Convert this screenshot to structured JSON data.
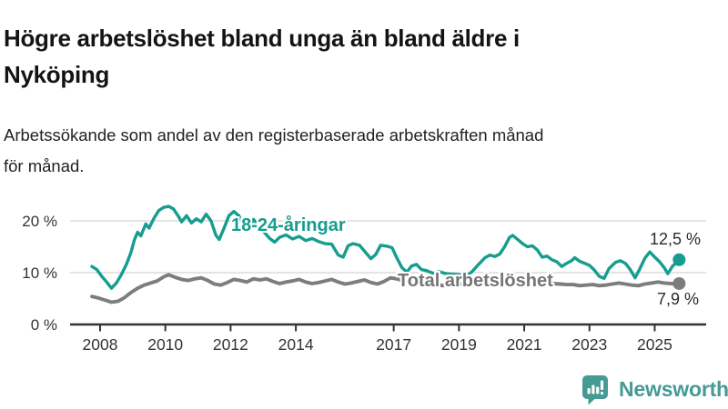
{
  "header": {
    "title": "Högre arbetslöshet bland unga än bland äldre i Nyköping",
    "title_lines": [
      "Högre arbetslöshet bland unga än bland äldre i",
      "Nyköping"
    ],
    "subtitle": "Arbetssökande som andel av den registerbaserade arbetskraften månad för månad.",
    "subtitle_lines": [
      "Arbetssökande som andel av den registerbaserade arbetskraften månad",
      "för månad."
    ]
  },
  "footer": {
    "brand": "Newsworthy",
    "logo_icon": "bar-chart-speech-bubble-icon"
  },
  "colors": {
    "young_series": "#169d8f",
    "total_series": "#7d7d7d",
    "grid": "#dcdcdc",
    "axis": "#333333",
    "axis_text": "#333333",
    "value_text": "#2b2b2b",
    "brand_teal": "#459a94"
  },
  "chart_data": {
    "type": "line",
    "title": "Högre arbetslöshet bland unga än bland äldre i Nyköping",
    "subtitle": "Arbetssökande som andel av den registerbaserade arbetskraften månad för månad.",
    "unit": "%",
    "x_axis": {
      "range": [
        2007.7,
        2025.95
      ],
      "ticks": [
        2008,
        2010,
        2012,
        2014,
        2017,
        2019,
        2021,
        2023,
        2025
      ]
    },
    "y_axis": {
      "range": [
        0,
        23.5
      ],
      "ticks": [
        0,
        10,
        20
      ],
      "tick_labels": [
        "0 %",
        "10 %",
        "20 %"
      ],
      "gridlines": [
        10,
        20
      ]
    },
    "legend_position": "inline-annotations",
    "grid": true,
    "series": [
      {
        "name": "18-24-åringar",
        "color": "#169d8f",
        "end_value": 12.5,
        "end_label": "12,5 %",
        "points": [
          [
            2007.75,
            11.2
          ],
          [
            2007.9,
            10.6
          ],
          [
            2008.05,
            9.3
          ],
          [
            2008.2,
            8.2
          ],
          [
            2008.35,
            7.0
          ],
          [
            2008.5,
            8.0
          ],
          [
            2008.65,
            9.6
          ],
          [
            2008.8,
            11.5
          ],
          [
            2008.95,
            14.0
          ],
          [
            2009.05,
            16.3
          ],
          [
            2009.15,
            17.8
          ],
          [
            2009.25,
            17.1
          ],
          [
            2009.4,
            19.4
          ],
          [
            2009.5,
            18.6
          ],
          [
            2009.65,
            20.5
          ],
          [
            2009.8,
            22.0
          ],
          [
            2009.95,
            22.6
          ],
          [
            2010.1,
            22.8
          ],
          [
            2010.25,
            22.3
          ],
          [
            2010.4,
            20.9
          ],
          [
            2010.5,
            19.8
          ],
          [
            2010.65,
            21.0
          ],
          [
            2010.8,
            19.6
          ],
          [
            2010.95,
            20.4
          ],
          [
            2011.1,
            19.8
          ],
          [
            2011.25,
            21.3
          ],
          [
            2011.4,
            20.0
          ],
          [
            2011.55,
            17.2
          ],
          [
            2011.65,
            16.4
          ],
          [
            2011.8,
            18.6
          ],
          [
            2011.95,
            21.0
          ],
          [
            2012.1,
            21.8
          ],
          [
            2012.25,
            21.0
          ],
          [
            2012.4,
            19.3
          ],
          [
            2012.55,
            18.2
          ],
          [
            2012.7,
            20.3
          ],
          [
            2012.85,
            19.2
          ],
          [
            2013.0,
            18.0
          ],
          [
            2013.2,
            16.6
          ],
          [
            2013.35,
            15.9
          ],
          [
            2013.5,
            16.8
          ],
          [
            2013.7,
            17.3
          ],
          [
            2013.9,
            16.5
          ],
          [
            2014.1,
            17.0
          ],
          [
            2014.3,
            16.2
          ],
          [
            2014.5,
            16.6
          ],
          [
            2014.7,
            16.0
          ],
          [
            2014.9,
            15.6
          ],
          [
            2015.1,
            15.5
          ],
          [
            2015.3,
            13.4
          ],
          [
            2015.45,
            13.0
          ],
          [
            2015.6,
            15.2
          ],
          [
            2015.75,
            15.6
          ],
          [
            2015.95,
            15.3
          ],
          [
            2016.1,
            14.2
          ],
          [
            2016.3,
            12.7
          ],
          [
            2016.45,
            13.5
          ],
          [
            2016.6,
            15.3
          ],
          [
            2016.8,
            15.1
          ],
          [
            2016.95,
            14.8
          ],
          [
            2017.1,
            12.8
          ],
          [
            2017.25,
            11.0
          ],
          [
            2017.4,
            10.1
          ],
          [
            2017.55,
            11.3
          ],
          [
            2017.7,
            11.6
          ],
          [
            2017.85,
            10.6
          ],
          [
            2018.0,
            10.4
          ],
          [
            2018.2,
            9.9
          ],
          [
            2018.4,
            10.2
          ],
          [
            2018.6,
            9.8
          ],
          [
            2018.8,
            9.7
          ],
          [
            2019.0,
            9.6
          ],
          [
            2019.2,
            9.2
          ],
          [
            2019.4,
            10.2
          ],
          [
            2019.6,
            11.6
          ],
          [
            2019.8,
            12.9
          ],
          [
            2019.95,
            13.4
          ],
          [
            2020.1,
            13.1
          ],
          [
            2020.25,
            13.6
          ],
          [
            2020.4,
            15.0
          ],
          [
            2020.55,
            16.8
          ],
          [
            2020.65,
            17.2
          ],
          [
            2020.8,
            16.4
          ],
          [
            2020.95,
            15.6
          ],
          [
            2021.1,
            15.0
          ],
          [
            2021.25,
            15.2
          ],
          [
            2021.4,
            14.4
          ],
          [
            2021.55,
            13.0
          ],
          [
            2021.7,
            13.2
          ],
          [
            2021.85,
            12.5
          ],
          [
            2022.0,
            12.1
          ],
          [
            2022.15,
            11.2
          ],
          [
            2022.3,
            11.8
          ],
          [
            2022.45,
            12.3
          ],
          [
            2022.55,
            12.9
          ],
          [
            2022.7,
            12.2
          ],
          [
            2022.85,
            11.8
          ],
          [
            2023.0,
            11.4
          ],
          [
            2023.15,
            10.5
          ],
          [
            2023.3,
            9.3
          ],
          [
            2023.45,
            8.9
          ],
          [
            2023.6,
            10.8
          ],
          [
            2023.8,
            12.0
          ],
          [
            2023.95,
            12.3
          ],
          [
            2024.1,
            11.8
          ],
          [
            2024.25,
            10.6
          ],
          [
            2024.4,
            9.0
          ],
          [
            2024.55,
            10.8
          ],
          [
            2024.7,
            12.8
          ],
          [
            2024.85,
            14.0
          ],
          [
            2025.0,
            13.0
          ],
          [
            2025.15,
            12.1
          ],
          [
            2025.3,
            10.9
          ],
          [
            2025.4,
            9.8
          ],
          [
            2025.55,
            11.3
          ],
          [
            2025.65,
            11.8
          ],
          [
            2025.75,
            12.5
          ]
        ]
      },
      {
        "name": "Total arbetslöshet",
        "color": "#7d7d7d",
        "end_value": 7.9,
        "end_label": "7,9 %",
        "points": [
          [
            2007.75,
            5.4
          ],
          [
            2007.95,
            5.1
          ],
          [
            2008.15,
            4.7
          ],
          [
            2008.35,
            4.3
          ],
          [
            2008.55,
            4.5
          ],
          [
            2008.75,
            5.2
          ],
          [
            2008.95,
            6.2
          ],
          [
            2009.15,
            7.0
          ],
          [
            2009.35,
            7.6
          ],
          [
            2009.55,
            8.0
          ],
          [
            2009.75,
            8.4
          ],
          [
            2009.95,
            9.2
          ],
          [
            2010.1,
            9.6
          ],
          [
            2010.3,
            9.1
          ],
          [
            2010.5,
            8.7
          ],
          [
            2010.7,
            8.5
          ],
          [
            2010.9,
            8.8
          ],
          [
            2011.1,
            9.0
          ],
          [
            2011.3,
            8.5
          ],
          [
            2011.5,
            7.8
          ],
          [
            2011.7,
            7.6
          ],
          [
            2011.9,
            8.1
          ],
          [
            2012.1,
            8.7
          ],
          [
            2012.3,
            8.5
          ],
          [
            2012.5,
            8.2
          ],
          [
            2012.7,
            8.8
          ],
          [
            2012.9,
            8.6
          ],
          [
            2013.1,
            8.8
          ],
          [
            2013.3,
            8.3
          ],
          [
            2013.5,
            7.9
          ],
          [
            2013.7,
            8.2
          ],
          [
            2013.9,
            8.4
          ],
          [
            2014.1,
            8.7
          ],
          [
            2014.3,
            8.2
          ],
          [
            2014.5,
            7.9
          ],
          [
            2014.7,
            8.1
          ],
          [
            2014.9,
            8.4
          ],
          [
            2015.1,
            8.7
          ],
          [
            2015.3,
            8.2
          ],
          [
            2015.5,
            7.8
          ],
          [
            2015.7,
            8.0
          ],
          [
            2015.9,
            8.3
          ],
          [
            2016.1,
            8.6
          ],
          [
            2016.3,
            8.1
          ],
          [
            2016.5,
            7.8
          ],
          [
            2016.7,
            8.3
          ],
          [
            2016.9,
            9.0
          ],
          [
            2017.1,
            8.8
          ],
          [
            2017.3,
            8.4
          ],
          [
            2017.5,
            8.0
          ],
          [
            2017.7,
            7.9
          ],
          [
            2017.9,
            8.2
          ],
          [
            2018.1,
            8.1
          ],
          [
            2018.3,
            7.8
          ],
          [
            2018.5,
            7.5
          ],
          [
            2018.7,
            7.6
          ],
          [
            2018.9,
            7.9
          ],
          [
            2019.1,
            7.8
          ],
          [
            2019.3,
            7.6
          ],
          [
            2019.5,
            7.5
          ],
          [
            2019.7,
            7.7
          ],
          [
            2019.9,
            7.9
          ],
          [
            2020.1,
            8.0
          ],
          [
            2020.3,
            8.4
          ],
          [
            2020.5,
            8.9
          ],
          [
            2020.7,
            9.1
          ],
          [
            2020.9,
            8.9
          ],
          [
            2021.1,
            8.8
          ],
          [
            2021.3,
            8.5
          ],
          [
            2021.5,
            8.2
          ],
          [
            2021.7,
            8.0
          ],
          [
            2021.9,
            7.9
          ],
          [
            2022.1,
            7.8
          ],
          [
            2022.3,
            7.7
          ],
          [
            2022.5,
            7.7
          ],
          [
            2022.7,
            7.5
          ],
          [
            2022.9,
            7.6
          ],
          [
            2023.1,
            7.7
          ],
          [
            2023.3,
            7.5
          ],
          [
            2023.5,
            7.6
          ],
          [
            2023.7,
            7.8
          ],
          [
            2023.9,
            8.0
          ],
          [
            2024.1,
            7.8
          ],
          [
            2024.3,
            7.6
          ],
          [
            2024.5,
            7.5
          ],
          [
            2024.7,
            7.8
          ],
          [
            2024.9,
            8.0
          ],
          [
            2025.1,
            8.2
          ],
          [
            2025.3,
            8.0
          ],
          [
            2025.5,
            7.9
          ],
          [
            2025.65,
            7.85
          ],
          [
            2025.75,
            7.9
          ]
        ]
      }
    ]
  }
}
